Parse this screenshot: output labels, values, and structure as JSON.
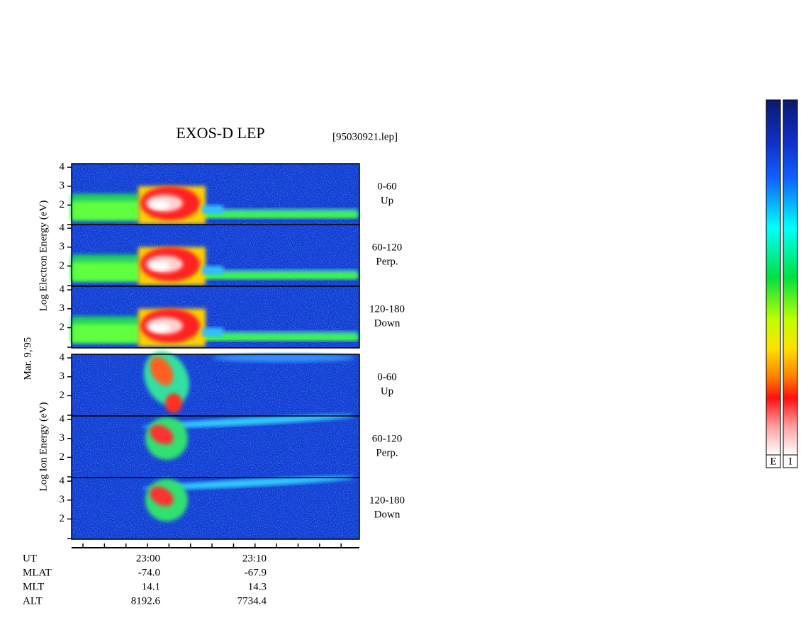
{
  "title": "EXOS-D LEP",
  "file": "[95030921.lep]",
  "date_label": "Mar. 9,'95",
  "ylim": [
    0.93,
    4.19
  ],
  "yticks": [
    2,
    3,
    4
  ],
  "groups": [
    {
      "ylabel": "Log  Electron  Energy (eV)",
      "panels": [
        {
          "angle": "0-60",
          "direction": "Up"
        },
        {
          "angle": "60-120",
          "direction": "Perp."
        },
        {
          "angle": "120-180",
          "direction": "Down"
        }
      ]
    },
    {
      "ylabel": "Log  Ion  Energy (eV)",
      "panels": [
        {
          "angle": "0-60",
          "direction": "Up"
        },
        {
          "angle": "60-120",
          "direction": "Perp."
        },
        {
          "angle": "120-180",
          "direction": "Down"
        }
      ]
    }
  ],
  "orbit_rows": [
    "UT",
    "MLAT",
    "MLT",
    "ALT"
  ],
  "orbit_columns": [
    [
      "23:00",
      "-74.0",
      "14.1",
      "8192.6"
    ],
    [
      "23:10",
      "-67.9",
      "14.3",
      "7734.4"
    ]
  ],
  "colorbars": [
    "E",
    "I"
  ]
}
